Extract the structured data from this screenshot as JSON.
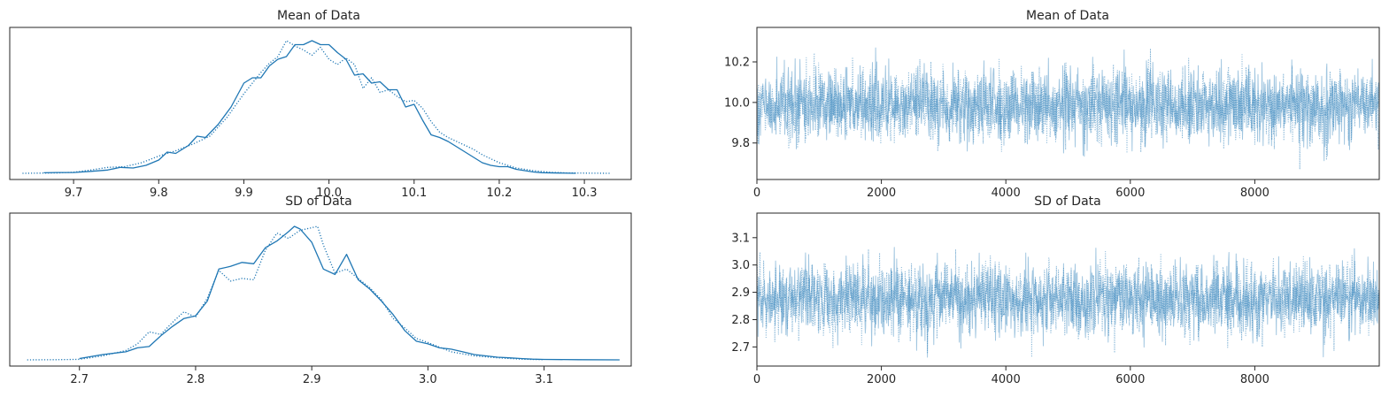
{
  "chart_data": [
    {
      "type": "line",
      "kind": "density",
      "title": "Mean of Data",
      "xlabel": "",
      "ylabel": "",
      "xlim": [
        9.625,
        10.355
      ],
      "ylim": [
        0,
        1
      ],
      "yticks_shown": false,
      "xticks": [
        "9.7",
        "9.8",
        "9.9",
        "10.0",
        "10.1",
        "10.2",
        "10.3"
      ],
      "xtick_values": [
        9.7,
        9.8,
        9.9,
        10.0,
        10.1,
        10.2,
        10.3
      ],
      "color": "#1f77b4",
      "series": [
        {
          "linestyle": "solid",
          "x": [
            9.665,
            9.68,
            9.7,
            9.72,
            9.74,
            9.755,
            9.77,
            9.785,
            9.8,
            9.81,
            9.82,
            9.835,
            9.845,
            9.855,
            9.87,
            9.885,
            9.9,
            9.91,
            9.92,
            9.93,
            9.94,
            9.95,
            9.96,
            9.97,
            9.98,
            9.99,
            10.0,
            10.01,
            10.02,
            10.03,
            10.04,
            10.05,
            10.06,
            10.07,
            10.08,
            10.09,
            10.1,
            10.11,
            10.12,
            10.13,
            10.14,
            10.15,
            10.16,
            10.17,
            10.18,
            10.19,
            10.2,
            10.21,
            10.22,
            10.23,
            10.24,
            10.25,
            10.27,
            10.29
          ],
          "y": [
            0.004,
            0.006,
            0.006,
            0.015,
            0.025,
            0.045,
            0.04,
            0.06,
            0.1,
            0.16,
            0.15,
            0.21,
            0.28,
            0.27,
            0.37,
            0.5,
            0.68,
            0.72,
            0.72,
            0.81,
            0.86,
            0.88,
            0.97,
            0.97,
            1.0,
            0.97,
            0.97,
            0.91,
            0.86,
            0.74,
            0.75,
            0.68,
            0.69,
            0.63,
            0.63,
            0.5,
            0.52,
            0.4,
            0.29,
            0.27,
            0.24,
            0.2,
            0.16,
            0.12,
            0.08,
            0.06,
            0.05,
            0.05,
            0.03,
            0.02,
            0.01,
            0.005,
            0.002,
            0.0
          ]
        },
        {
          "linestyle": "dotted",
          "x": [
            9.64,
            9.66,
            9.68,
            9.7,
            9.72,
            9.74,
            9.76,
            9.78,
            9.8,
            9.82,
            9.84,
            9.86,
            9.88,
            9.9,
            9.91,
            9.92,
            9.93,
            9.94,
            9.95,
            9.96,
            9.97,
            9.98,
            9.99,
            10.0,
            10.01,
            10.02,
            10.03,
            10.04,
            10.05,
            10.06,
            10.07,
            10.08,
            10.09,
            10.1,
            10.11,
            10.12,
            10.13,
            10.14,
            10.15,
            10.16,
            10.17,
            10.18,
            10.2,
            10.22,
            10.24,
            10.26,
            10.28,
            10.3,
            10.33
          ],
          "y": [
            0.0,
            0.001,
            0.003,
            0.008,
            0.025,
            0.045,
            0.05,
            0.08,
            0.13,
            0.17,
            0.22,
            0.28,
            0.42,
            0.6,
            0.68,
            0.76,
            0.83,
            0.88,
            1.0,
            0.96,
            0.93,
            0.89,
            0.95,
            0.86,
            0.82,
            0.87,
            0.82,
            0.64,
            0.72,
            0.61,
            0.63,
            0.58,
            0.54,
            0.55,
            0.49,
            0.39,
            0.31,
            0.27,
            0.24,
            0.21,
            0.18,
            0.14,
            0.08,
            0.04,
            0.02,
            0.008,
            0.003,
            0.001,
            0.0
          ]
        }
      ]
    },
    {
      "type": "line",
      "kind": "trace",
      "title": "Mean of Data",
      "xlabel": "",
      "ylabel": "",
      "xlim": [
        0,
        10000
      ],
      "ylim": [
        9.62,
        10.37
      ],
      "xticks": [
        "0",
        "2000",
        "4000",
        "6000",
        "8000"
      ],
      "xtick_values": [
        0,
        2000,
        4000,
        6000,
        8000
      ],
      "yticks": [
        "9.8",
        "10.0",
        "10.2"
      ],
      "ytick_values": [
        9.8,
        10.0,
        10.2
      ],
      "color": "#1f77b4",
      "series": [
        {
          "linestyle": "solid",
          "n_draws": 10000,
          "center": 9.985,
          "sd": 0.095,
          "min": 9.66,
          "max": 10.32
        },
        {
          "linestyle": "dotted",
          "n_draws": 10000,
          "center": 9.985,
          "sd": 0.095,
          "min": 9.66,
          "max": 10.32
        }
      ]
    },
    {
      "type": "line",
      "kind": "density",
      "title": "SD of Data",
      "xlabel": "",
      "ylabel": "",
      "xlim": [
        2.64,
        3.175
      ],
      "ylim": [
        0,
        1
      ],
      "yticks_shown": false,
      "xticks": [
        "2.7",
        "2.8",
        "2.9",
        "3.0",
        "3.1"
      ],
      "xtick_values": [
        2.7,
        2.8,
        2.9,
        3.0,
        3.1
      ],
      "color": "#1f77b4",
      "series": [
        {
          "linestyle": "solid",
          "x": [
            2.7,
            2.72,
            2.74,
            2.75,
            2.76,
            2.77,
            2.78,
            2.79,
            2.8,
            2.81,
            2.82,
            2.83,
            2.84,
            2.85,
            2.86,
            2.87,
            2.88,
            2.885,
            2.89,
            2.9,
            2.91,
            2.92,
            2.93,
            2.94,
            2.95,
            2.96,
            2.97,
            2.98,
            2.99,
            3.0,
            3.01,
            3.02,
            3.03,
            3.04,
            3.05,
            3.06,
            3.07,
            3.08,
            3.09,
            3.1,
            3.13,
            3.165
          ],
          "y": [
            0.01,
            0.04,
            0.06,
            0.09,
            0.1,
            0.18,
            0.25,
            0.31,
            0.33,
            0.44,
            0.68,
            0.7,
            0.73,
            0.72,
            0.84,
            0.89,
            0.96,
            1.0,
            0.98,
            0.88,
            0.68,
            0.64,
            0.79,
            0.6,
            0.53,
            0.44,
            0.34,
            0.22,
            0.14,
            0.12,
            0.09,
            0.08,
            0.06,
            0.04,
            0.03,
            0.02,
            0.015,
            0.01,
            0.005,
            0.003,
            0.001,
            0.0
          ]
        },
        {
          "linestyle": "dotted",
          "x": [
            2.655,
            2.68,
            2.7,
            2.72,
            2.74,
            2.75,
            2.76,
            2.77,
            2.78,
            2.79,
            2.8,
            2.81,
            2.82,
            2.83,
            2.84,
            2.85,
            2.86,
            2.87,
            2.88,
            2.89,
            2.9,
            2.905,
            2.91,
            2.92,
            2.93,
            2.94,
            2.95,
            2.96,
            2.97,
            2.98,
            2.99,
            3.0,
            3.02,
            3.04,
            3.06,
            3.08,
            3.1
          ],
          "y": [
            0.0,
            0.001,
            0.004,
            0.03,
            0.07,
            0.12,
            0.21,
            0.19,
            0.28,
            0.36,
            0.32,
            0.46,
            0.67,
            0.59,
            0.61,
            0.6,
            0.82,
            0.95,
            0.91,
            0.97,
            0.99,
            1.0,
            0.86,
            0.65,
            0.68,
            0.61,
            0.54,
            0.45,
            0.31,
            0.24,
            0.16,
            0.13,
            0.06,
            0.03,
            0.015,
            0.005,
            0.001
          ]
        }
      ]
    },
    {
      "type": "line",
      "kind": "trace",
      "title": "SD of Data",
      "xlabel": "",
      "ylabel": "",
      "xlim": [
        0,
        10000
      ],
      "ylim": [
        2.63,
        3.19
      ],
      "xticks": [
        "0",
        "2000",
        "4000",
        "6000",
        "8000"
      ],
      "xtick_values": [
        0,
        2000,
        4000,
        6000,
        8000
      ],
      "yticks": [
        "2.7",
        "2.8",
        "2.9",
        "3.0",
        "3.1"
      ],
      "ytick_values": [
        2.7,
        2.8,
        2.9,
        3.0,
        3.1
      ],
      "color": "#1f77b4",
      "series": [
        {
          "linestyle": "solid",
          "n_draws": 10000,
          "center": 2.875,
          "sd": 0.068,
          "min": 2.66,
          "max": 3.16
        },
        {
          "linestyle": "dotted",
          "n_draws": 10000,
          "center": 2.875,
          "sd": 0.068,
          "min": 2.66,
          "max": 3.16
        }
      ]
    }
  ]
}
